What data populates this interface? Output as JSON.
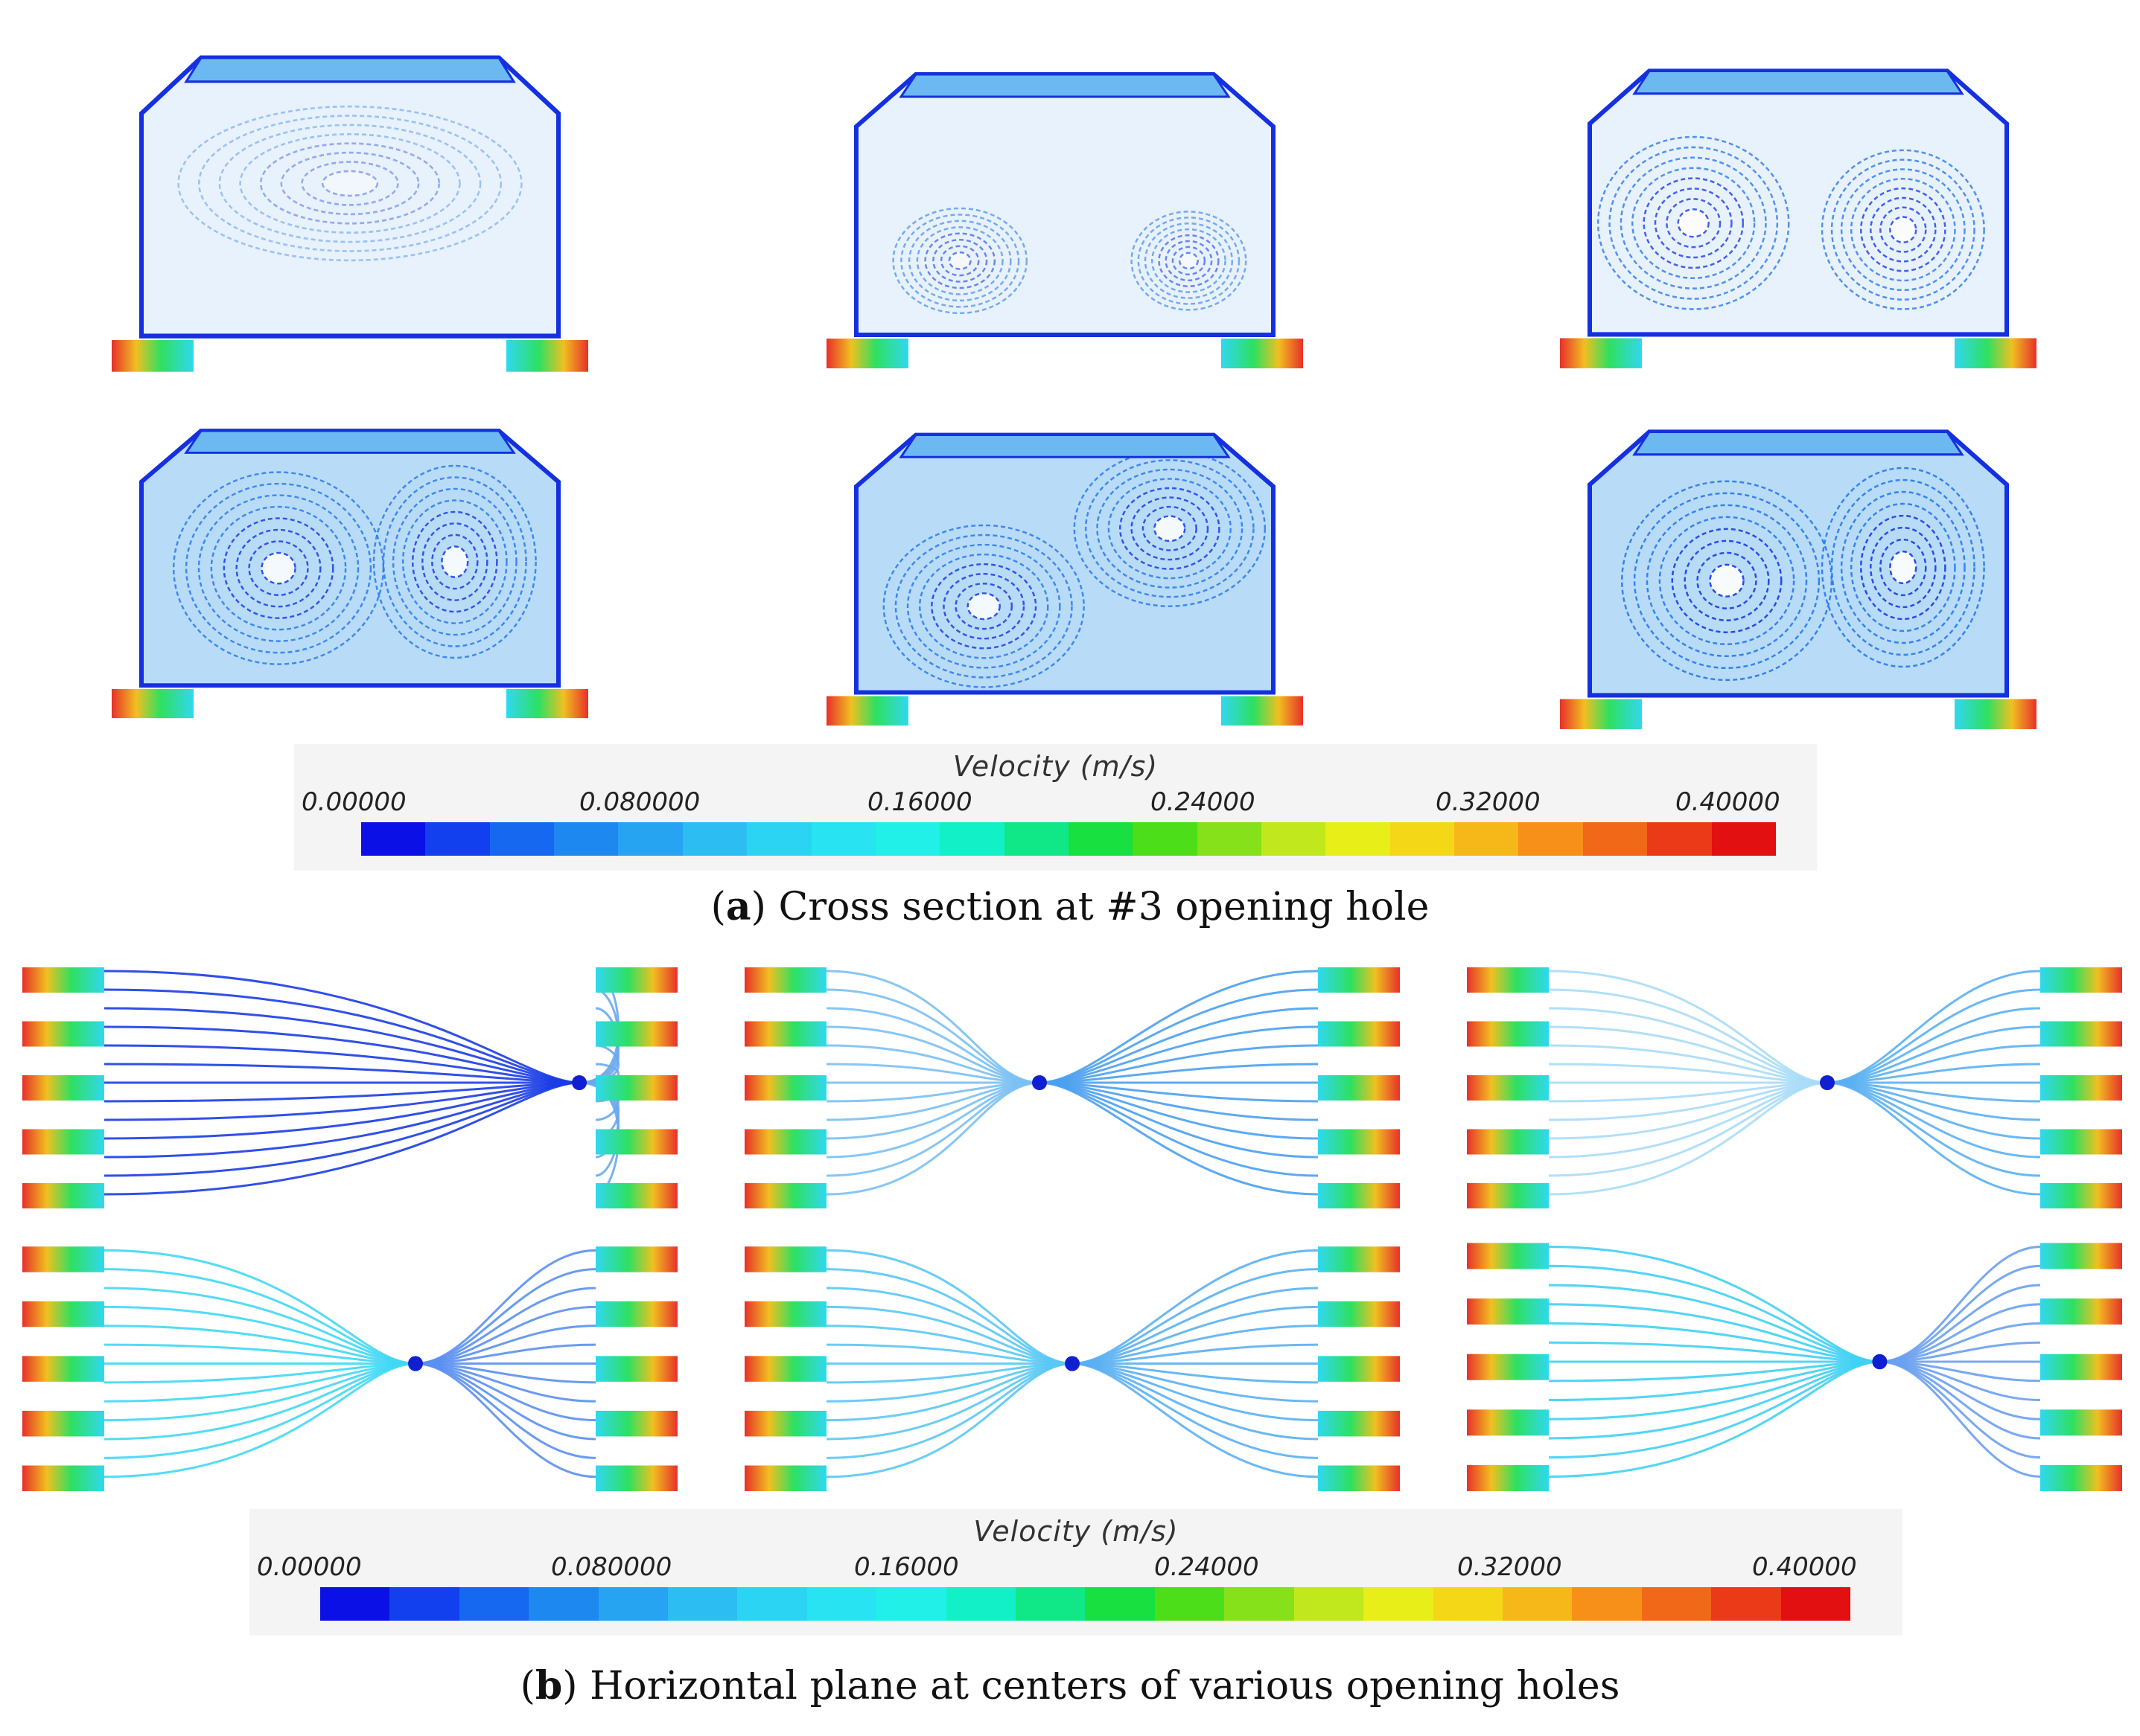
{
  "legends": [
    {
      "title": "Velocity (m/s)",
      "ticks": [
        "0.00000",
        "0.080000",
        "0.16000",
        "0.24000",
        "0.32000",
        "0.40000"
      ]
    },
    {
      "title": "Velocity (m/s)",
      "ticks": [
        "0.00000",
        "0.080000",
        "0.16000",
        "0.24000",
        "0.32000",
        "0.40000"
      ]
    }
  ],
  "colormap": [
    "#0a10e6",
    "#1240ee",
    "#1668f0",
    "#1c88f0",
    "#26a4f2",
    "#2cbef2",
    "#2cd4f4",
    "#28e4f2",
    "#20f0e8",
    "#12f0c8",
    "#10e888",
    "#18e040",
    "#4cde18",
    "#86e01a",
    "#c0e81c",
    "#e8ee18",
    "#f4d818",
    "#f6b818",
    "#f69018",
    "#f06818",
    "#ea3a18",
    "#e21010"
  ],
  "captions": {
    "a": {
      "letter": "a",
      "text": " Cross section at #3 opening hole"
    },
    "b": {
      "letter": "b",
      "text": " Horizontal plane at centers of various opening holes"
    }
  }
}
